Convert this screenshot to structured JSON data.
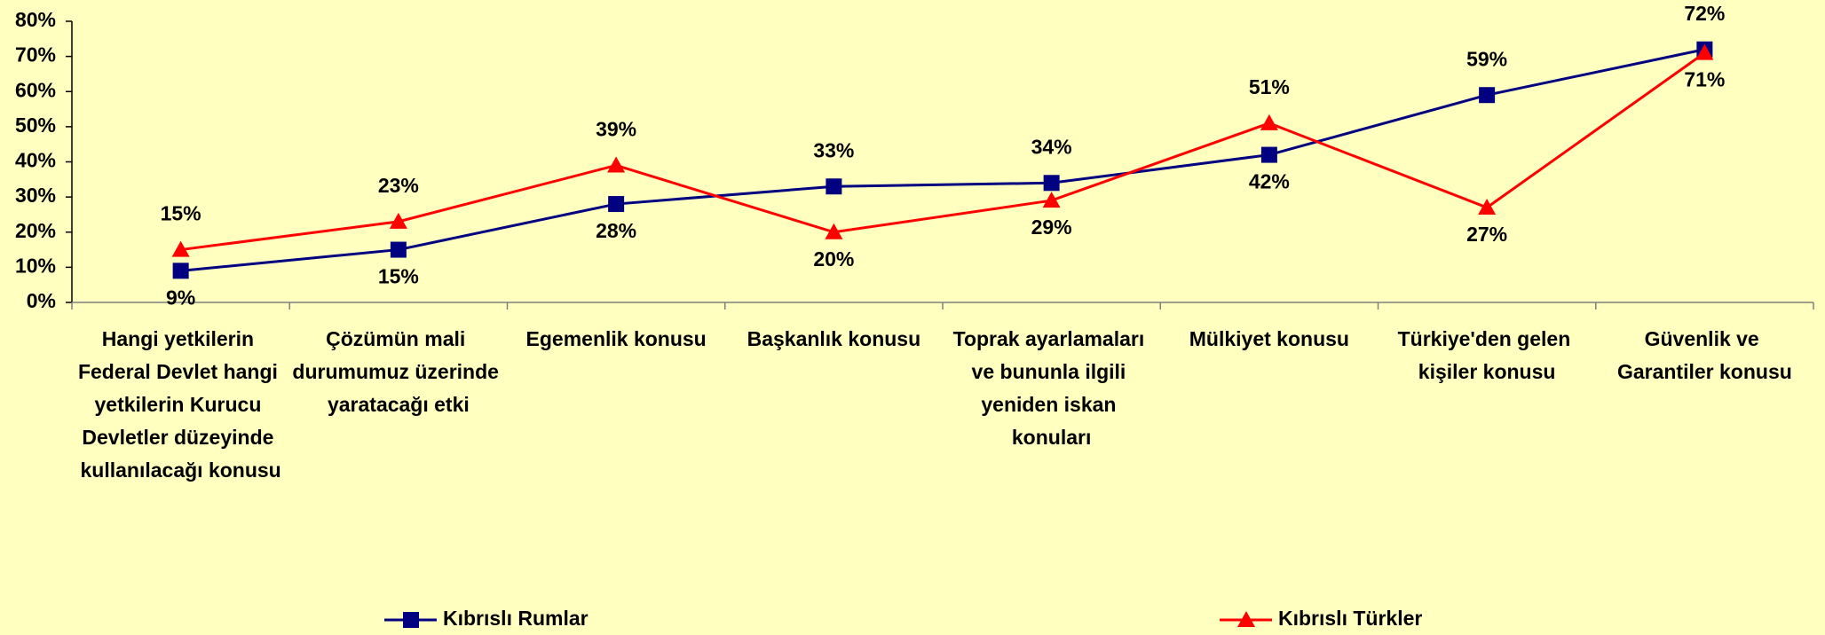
{
  "chart_data": {
    "type": "line",
    "categories": [
      "Hangi yetkilerin Federal Devlet hangi yetkilerin Kurucu Devletler düzeyinde kullanılacağı konusu",
      "Çözümün mali durumumuz üzerinde yaratacağı etki",
      "Egemenlik konusu",
      "Başkanlık konusu",
      "Toprak ayarlamaları ve bununla ilgili yeniden iskan konuları",
      "Mülkiyet konusu",
      "Türkiye'den gelen kişiler konusu",
      "Güvenlik ve Garantiler konusu"
    ],
    "series": [
      {
        "name": "Kıbrıslı Rumlar",
        "color": "#000080",
        "marker": "square",
        "values": [
          9,
          15,
          28,
          33,
          34,
          42,
          59,
          72
        ],
        "value_labels": [
          "9%",
          "15%",
          "28%",
          "33%",
          "34%",
          "42%",
          "59%",
          "72%"
        ]
      },
      {
        "name": "Kıbrıslı Türkler",
        "color": "#ff0000",
        "marker": "triangle",
        "values": [
          15,
          23,
          39,
          20,
          29,
          51,
          27,
          71
        ],
        "value_labels": [
          "15%",
          "23%",
          "39%",
          "20%",
          "29%",
          "51%",
          "27%",
          "71%"
        ]
      }
    ],
    "ylim": [
      0,
      80
    ],
    "yticks": [
      {
        "value": 0,
        "label": "0%"
      },
      {
        "value": 10,
        "label": "10%"
      },
      {
        "value": 20,
        "label": "20%"
      },
      {
        "value": 30,
        "label": "30%"
      },
      {
        "value": 40,
        "label": "40%"
      },
      {
        "value": 50,
        "label": "50%"
      },
      {
        "value": 60,
        "label": "60%"
      },
      {
        "value": 70,
        "label": "70%"
      },
      {
        "value": 80,
        "label": "80%"
      }
    ],
    "legend": "bottom"
  }
}
